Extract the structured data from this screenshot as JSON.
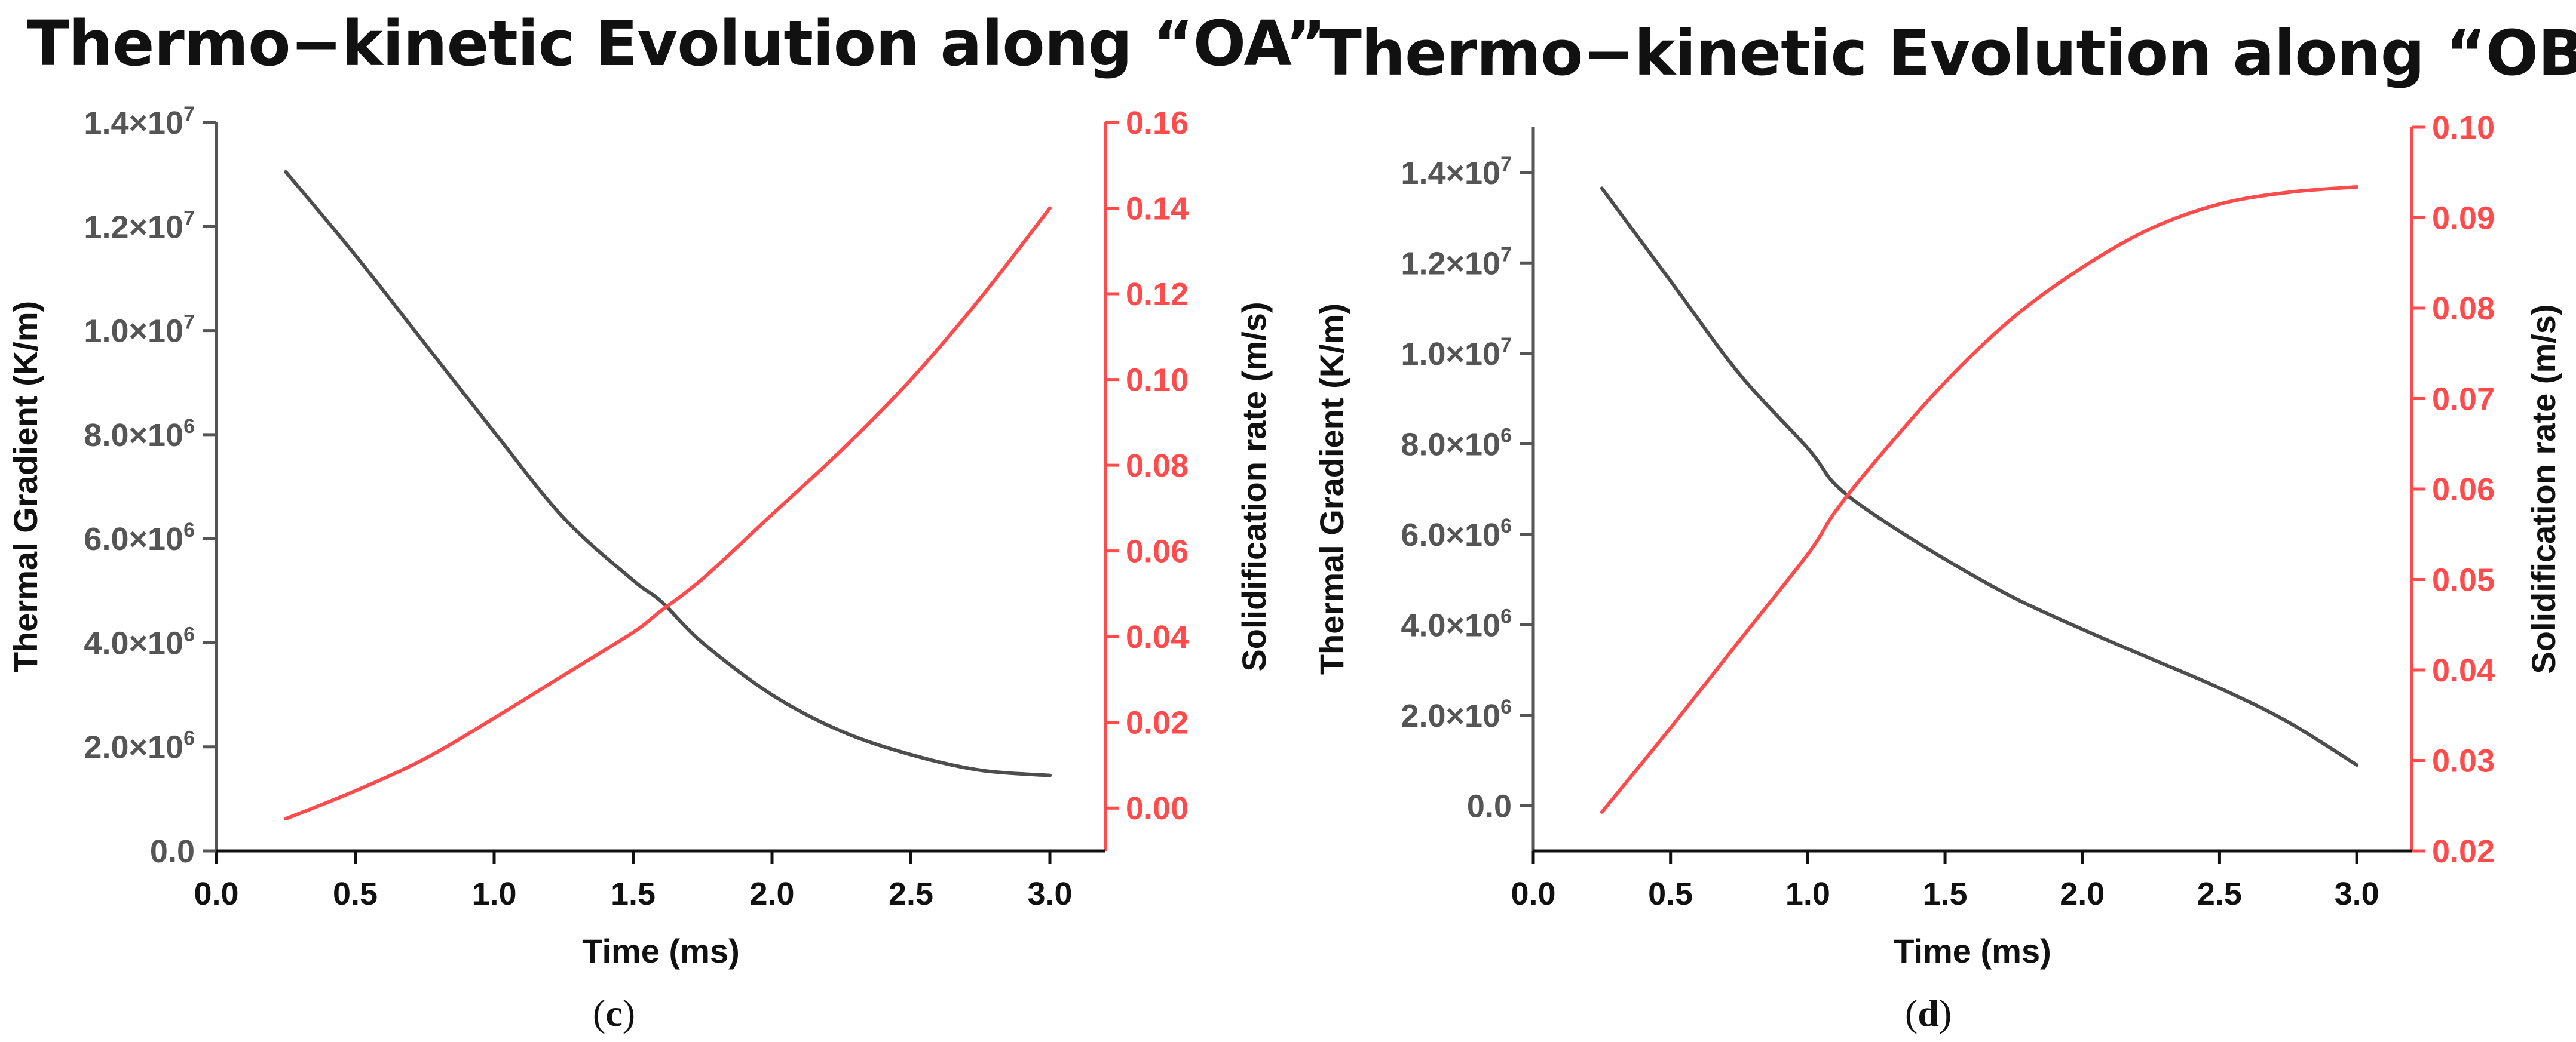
{
  "figure": {
    "panels": [
      {
        "id": "c",
        "title": "Thermo−kinetic Evolution along “OA”",
        "label_open": "(",
        "label_letter": "c",
        "label_close": ")"
      },
      {
        "id": "d",
        "title": "Thermo−kinetic Evolution along “OB”",
        "label_open": "(",
        "label_letter": "d",
        "label_close": ")"
      }
    ]
  },
  "colors": {
    "gradient_series": "#4d4d4d",
    "rate_series": "#ff4b4b",
    "axis_left": "#555555",
    "axis_right": "#ff4b4b",
    "axis_bottom": "#111111"
  },
  "chart_data": [
    {
      "type": "line",
      "title": "Thermo−kinetic Evolution along “OA”",
      "xlabel": "Time (ms)",
      "ylabel": "Thermal Gradient (K/m)",
      "y2label": "Solidification rate (m/s)",
      "xlim": [
        0.0,
        3.2
      ],
      "ylim": [
        0,
        14000000
      ],
      "y2lim": [
        -0.01,
        0.16
      ],
      "xticks": [
        "0.0",
        "0.5",
        "1.0",
        "1.5",
        "2.0",
        "2.5",
        "3.0"
      ],
      "xtick_values": [
        0,
        0.5,
        1.0,
        1.5,
        2.0,
        2.5,
        3.0
      ],
      "yticks": [
        {
          "value": 0,
          "mantissa": "0.0",
          "exp": ""
        },
        {
          "value": 2000000,
          "mantissa": "2.0×10",
          "exp": "6"
        },
        {
          "value": 4000000,
          "mantissa": "4.0×10",
          "exp": "6"
        },
        {
          "value": 6000000,
          "mantissa": "6.0×10",
          "exp": "6"
        },
        {
          "value": 8000000,
          "mantissa": "8.0×10",
          "exp": "6"
        },
        {
          "value": 10000000,
          "mantissa": "1.0×10",
          "exp": "7"
        },
        {
          "value": 12000000,
          "mantissa": "1.2×10",
          "exp": "7"
        },
        {
          "value": 14000000,
          "mantissa": "1.4×10",
          "exp": "7"
        }
      ],
      "y2ticks": [
        "0.00",
        "0.02",
        "0.04",
        "0.06",
        "0.08",
        "0.10",
        "0.12",
        "0.14",
        "0.16"
      ],
      "y2tick_values": [
        0,
        0.02,
        0.04,
        0.06,
        0.08,
        0.1,
        0.12,
        0.14,
        0.16
      ],
      "series": [
        {
          "name": "Thermal Gradient",
          "axis": "left",
          "x": [
            0.25,
            0.5,
            0.75,
            1.0,
            1.25,
            1.5,
            1.6,
            1.75,
            2.0,
            2.25,
            2.5,
            2.75,
            3.0
          ],
          "y": [
            13050000,
            11450000,
            9750000,
            8050000,
            6400000,
            5200000,
            4800000,
            4000000,
            3000000,
            2300000,
            1850000,
            1550000,
            1450000
          ]
        },
        {
          "name": "Solidification rate",
          "axis": "right",
          "x": [
            0.25,
            0.5,
            0.75,
            1.0,
            1.25,
            1.5,
            1.6,
            1.75,
            2.0,
            2.25,
            2.5,
            2.75,
            3.0
          ],
          "y": [
            -0.0025,
            0.004,
            0.0115,
            0.021,
            0.031,
            0.041,
            0.046,
            0.0535,
            0.0685,
            0.0835,
            0.1,
            0.119,
            0.14
          ]
        }
      ]
    },
    {
      "type": "line",
      "title": "Thermo−kinetic Evolution along “OB”",
      "xlabel": "Time (ms)",
      "ylabel": "Thermal Gradient (K/m)",
      "y2label": "Solidification rate (m/s)",
      "xlim": [
        0.0,
        3.2
      ],
      "ylim": [
        -1000000,
        15000000
      ],
      "y2lim": [
        0.02,
        0.1
      ],
      "xticks": [
        "0.0",
        "0.5",
        "1.0",
        "1.5",
        "2.0",
        "2.5",
        "3.0"
      ],
      "xtick_values": [
        0,
        0.5,
        1.0,
        1.5,
        2.0,
        2.5,
        3.0
      ],
      "yticks": [
        {
          "value": 0,
          "mantissa": "0.0",
          "exp": ""
        },
        {
          "value": 2000000,
          "mantissa": "2.0×10",
          "exp": "6"
        },
        {
          "value": 4000000,
          "mantissa": "4.0×10",
          "exp": "6"
        },
        {
          "value": 6000000,
          "mantissa": "6.0×10",
          "exp": "6"
        },
        {
          "value": 8000000,
          "mantissa": "8.0×10",
          "exp": "6"
        },
        {
          "value": 10000000,
          "mantissa": "1.0×10",
          "exp": "7"
        },
        {
          "value": 12000000,
          "mantissa": "1.2×10",
          "exp": "7"
        },
        {
          "value": 14000000,
          "mantissa": "1.4×10",
          "exp": "7"
        }
      ],
      "y2ticks": [
        "0.02",
        "0.03",
        "0.04",
        "0.05",
        "0.06",
        "0.07",
        "0.08",
        "0.09",
        "0.10"
      ],
      "y2tick_values": [
        0.02,
        0.03,
        0.04,
        0.05,
        0.06,
        0.07,
        0.08,
        0.09,
        0.1
      ],
      "series": [
        {
          "name": "Thermal Gradient",
          "axis": "left",
          "x": [
            0.25,
            0.5,
            0.75,
            1.0,
            1.1,
            1.25,
            1.5,
            1.75,
            2.0,
            2.25,
            2.5,
            2.75,
            3.0
          ],
          "y": [
            13650000,
            11600000,
            9550000,
            7900000,
            7100000,
            6400000,
            5450000,
            4600000,
            3900000,
            3250000,
            2600000,
            1850000,
            900000
          ]
        },
        {
          "name": "Solidification rate",
          "axis": "right",
          "x": [
            0.25,
            0.5,
            0.75,
            1.0,
            1.1,
            1.25,
            1.5,
            1.75,
            2.0,
            2.25,
            2.5,
            2.75,
            3.0
          ],
          "y": [
            0.0243,
            0.0336,
            0.0432,
            0.0528,
            0.0575,
            0.0632,
            0.0718,
            0.079,
            0.0845,
            0.0888,
            0.0915,
            0.0928,
            0.0934
          ]
        }
      ]
    }
  ]
}
